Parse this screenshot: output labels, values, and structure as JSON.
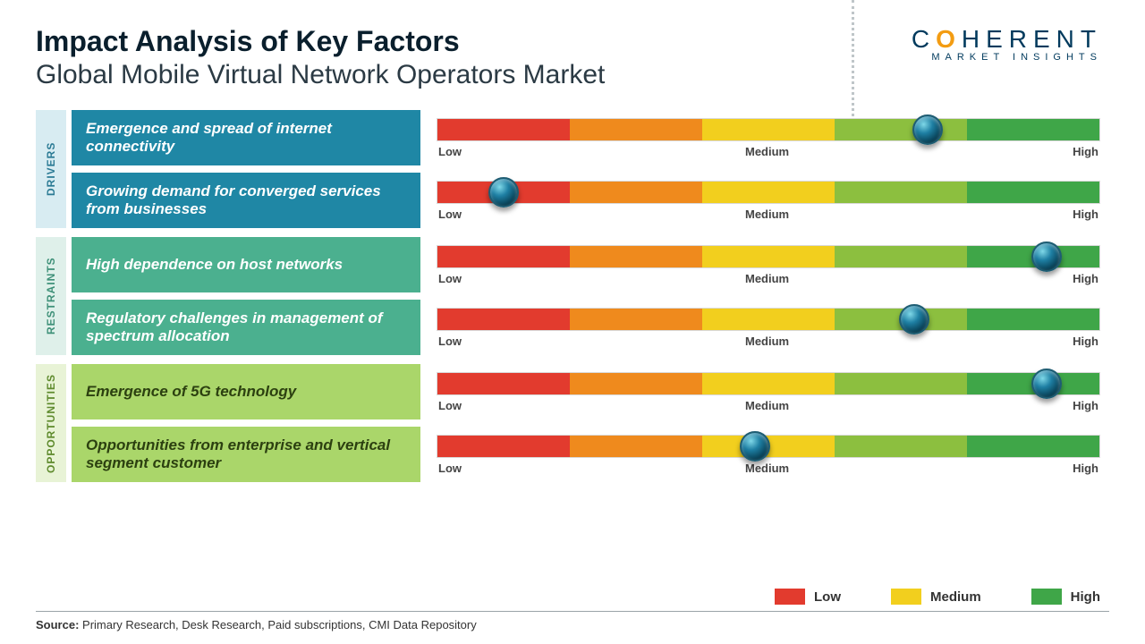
{
  "header": {
    "title": "Impact Analysis of Key Factors",
    "subtitle": "Global Mobile Virtual Network Operators Market",
    "logo_text_pre": "C",
    "logo_text_zero": "O",
    "logo_text_post": "HERENT",
    "logo_sub": "MARKET INSIGHTS"
  },
  "palette": {
    "segments": [
      "#e23b2e",
      "#ef8a1d",
      "#f2cf1e",
      "#8cbf3f",
      "#3fa648"
    ],
    "drivers_cat_bg": "#d8ecf2",
    "drivers_cat_text": "#2a7a94",
    "drivers_box_bg": "#1f87a5",
    "drivers_box_text": "#ffffff",
    "restraints_cat_bg": "#dff0ea",
    "restraints_cat_text": "#3e9078",
    "restraints_box_bg": "#4bb08f",
    "restraints_box_text": "#ffffff",
    "opps_cat_bg": "#e8f3d6",
    "opps_cat_text": "#5e8a2c",
    "opps_box_bg": "#aad66a",
    "opps_box_text": "#2c4010"
  },
  "groups": [
    {
      "key": "drivers",
      "label": "DRIVERS",
      "rows": [
        {
          "factor": "Emergence and spread of internet connectivity",
          "knob_pct": 74
        },
        {
          "factor": "Growing demand for converged services from businesses",
          "knob_pct": 10
        }
      ]
    },
    {
      "key": "restraints",
      "label": "RESTRAINTS",
      "rows": [
        {
          "factor": "High dependence on host networks",
          "knob_pct": 92
        },
        {
          "factor": "Regulatory challenges in management of spectrum allocation",
          "knob_pct": 72
        }
      ]
    },
    {
      "key": "opps",
      "label": "OPPORTUNITIES",
      "rows": [
        {
          "factor": "Emergence of 5G technology",
          "knob_pct": 92
        },
        {
          "factor": "Opportunities from enterprise and vertical segment customer",
          "knob_pct": 48
        }
      ]
    }
  ],
  "scale_labels": {
    "low": "Low",
    "medium": "Medium",
    "high": "High"
  },
  "legend": {
    "items": [
      {
        "label": "Low",
        "color": "#e23b2e"
      },
      {
        "label": "Medium",
        "color": "#f2cf1e"
      },
      {
        "label": "High",
        "color": "#3fa648"
      }
    ]
  },
  "source": {
    "label": "Source:",
    "text": " Primary Research, Desk Research, Paid subscriptions, CMI Data Repository"
  }
}
